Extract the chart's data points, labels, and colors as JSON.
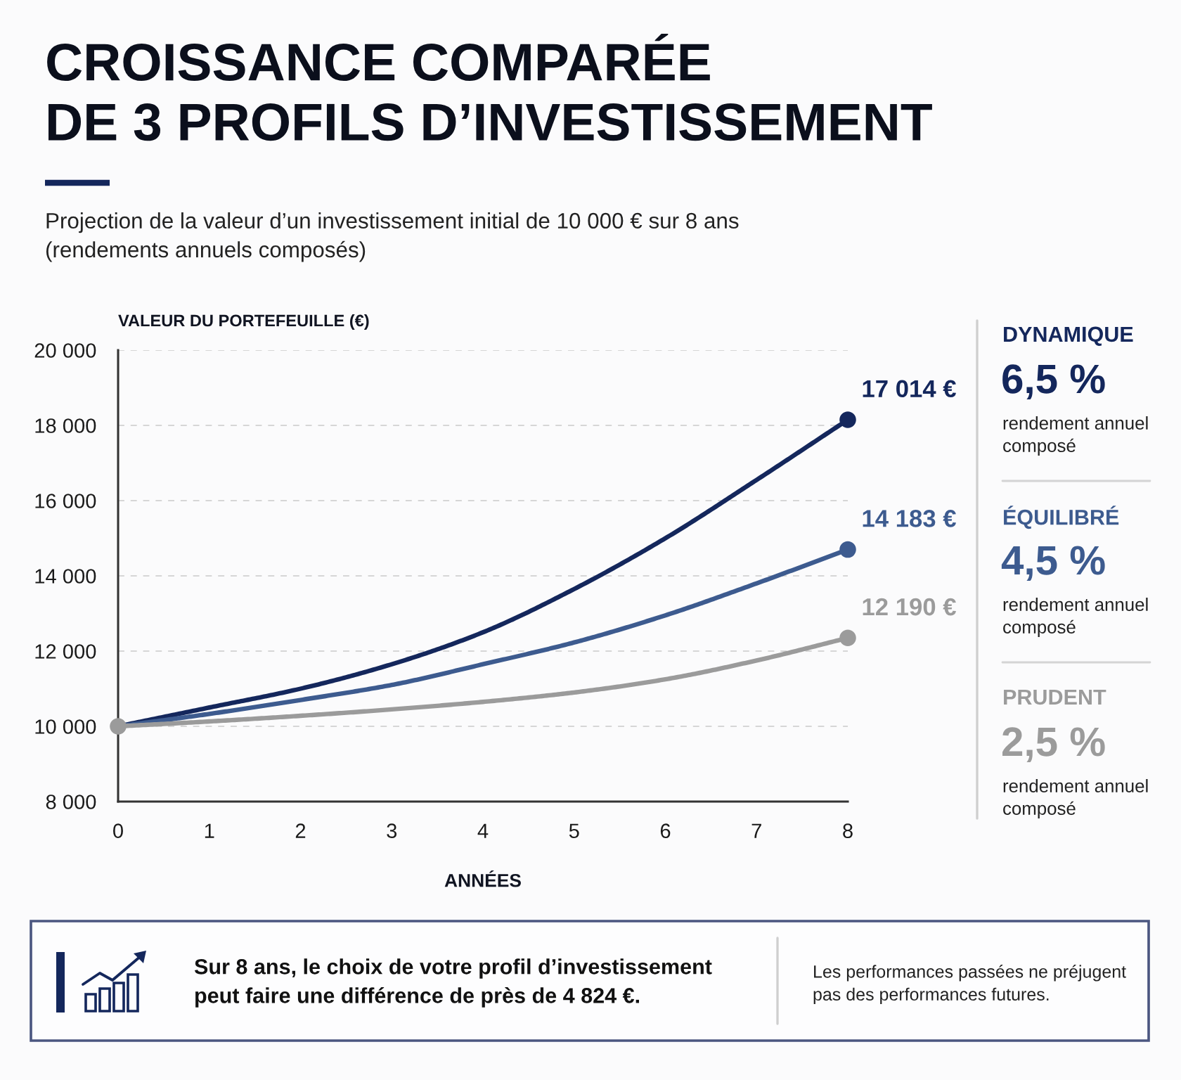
{
  "chart_data": {
    "type": "line",
    "title": "CROISSANCE COMPARÉE\nDE 3 PROFILS D’INVESTISSEMENT",
    "subtitle": "Projection de la valeur d’un investissement initial de 10 000 € sur 8 ans\n(rendements annuels composés)",
    "xlabel": "ANNÉES",
    "ylabel": "VALEUR DU PORTEFEUILLE (€)",
    "x": [
      0,
      1,
      2,
      3,
      4,
      5,
      6,
      7,
      8
    ],
    "series": [
      {
        "name": "DYNAMIQUE",
        "color": "#14275c",
        "values": [
          10000,
          10500,
          11000,
          11650,
          12500,
          13650,
          15000,
          16550,
          18150
        ]
      },
      {
        "name": "ÉQUILIBRÉ",
        "color": "#3d5b8f",
        "values": [
          10000,
          10330,
          10700,
          11100,
          11650,
          12230,
          12950,
          13800,
          14700
        ]
      },
      {
        "name": "PRUDENT",
        "color": "#9b9b9b",
        "values": [
          10000,
          10130,
          10280,
          10450,
          10650,
          10900,
          11250,
          11750,
          12350
        ]
      },
      {
        "type": "scatter",
        "marker": "circle",
        "color": "#14275c",
        "values": [
          null,
          null,
          null,
          null,
          null,
          null,
          null,
          null,
          18150
        ]
      },
      {
        "type": "scatter",
        "marker": "circle",
        "color": "#3d5b8f",
        "values": [
          null,
          null,
          null,
          null,
          null,
          null,
          null,
          null,
          14700
        ]
      },
      {
        "type": "scatter",
        "marker": "circle",
        "color": "#9b9b9b",
        "values": [
          10000,
          null,
          null,
          null,
          null,
          null,
          null,
          null,
          12350
        ]
      }
    ],
    "xlim": [
      0,
      8
    ],
    "xticks": [
      0,
      1,
      2,
      3,
      4,
      5,
      6,
      7,
      8
    ],
    "ylim": [
      8000,
      20000
    ],
    "yticks": [
      {
        "value": 8000,
        "label": "8 000"
      },
      {
        "value": 10000,
        "label": "10 000"
      },
      {
        "value": 12000,
        "label": "12 000"
      },
      {
        "value": 14000,
        "label": "14 000"
      },
      {
        "value": 16000,
        "label": "16 000"
      },
      {
        "value": 18000,
        "label": "18 000"
      },
      {
        "value": 20000,
        "label": "20 000"
      }
    ],
    "grid": "y",
    "legend": "right",
    "annotations": [
      "17 014 €",
      "14 183 €",
      "12 190 €",
      "6,5 %",
      "rendement annuel\ncomposé",
      "4,5 %",
      "rendement annuel\ncomposé",
      "2,5 %",
      "rendement annuel\ncomposé",
      "Sur 8 ans, le choix de votre profil d’investissement\npeut faire une différence de près de 4 824 €.",
      "Les performances passées ne préjugent\npas des performances futures."
    ]
  }
}
